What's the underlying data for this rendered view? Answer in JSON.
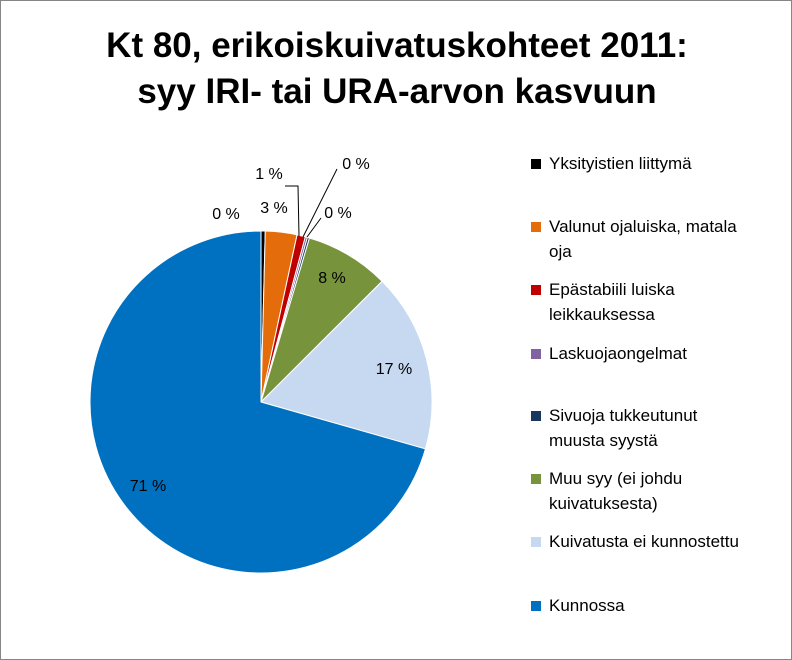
{
  "chart_data": {
    "type": "pie",
    "title_line1": "Kt 80, erikoiskuivatuskohteet 2011:",
    "title_line2": "syy IRI- tai URA-arvon kasvuun",
    "slices": [
      {
        "name": "Yksityistien liittymä",
        "value": 0.4,
        "label": "0 %",
        "color": "#000000"
      },
      {
        "name": "Valunut ojaluiska, matala oja",
        "value": 3,
        "label": "3 %",
        "color": "#e46c0a"
      },
      {
        "name": "Epästabiili luiska leikkauksessa",
        "value": 0.8,
        "label": "1 %",
        "color": "#c00000"
      },
      {
        "name": "Laskuojaongelmat",
        "value": 0.2,
        "label": "0 %",
        "color": "#8064a2"
      },
      {
        "name": "Sivuoja tukkeutunut muusta syystä",
        "value": 0.2,
        "label": "0 %",
        "color": "#17375e"
      },
      {
        "name": "Muu syy (ei johdu kuivatuksesta)",
        "value": 8,
        "label": "8 %",
        "color": "#77933c"
      },
      {
        "name": "Kuivatusta ei kunnostettu",
        "value": 17,
        "label": "17 %",
        "color": "#c6d9f1"
      },
      {
        "name": "Kunnossa",
        "value": 71,
        "label": "71 %",
        "color": "#0070c0"
      }
    ],
    "legend_lines": [
      [
        "Yksityistien liittymä"
      ],
      [
        "Valunut ojaluiska, matala",
        "oja"
      ],
      [
        "Epästabiili luiska",
        "leikkauksessa"
      ],
      [
        "Laskuojaongelmat"
      ],
      [
        "Sivuoja tukkeutunut",
        "muusta syystä"
      ],
      [
        "Muu syy (ei johdu",
        "kuivatuksesta)"
      ],
      [
        "Kuivatusta ei kunnostettu"
      ],
      [
        "Kunnossa"
      ]
    ],
    "legend_position": "right"
  }
}
